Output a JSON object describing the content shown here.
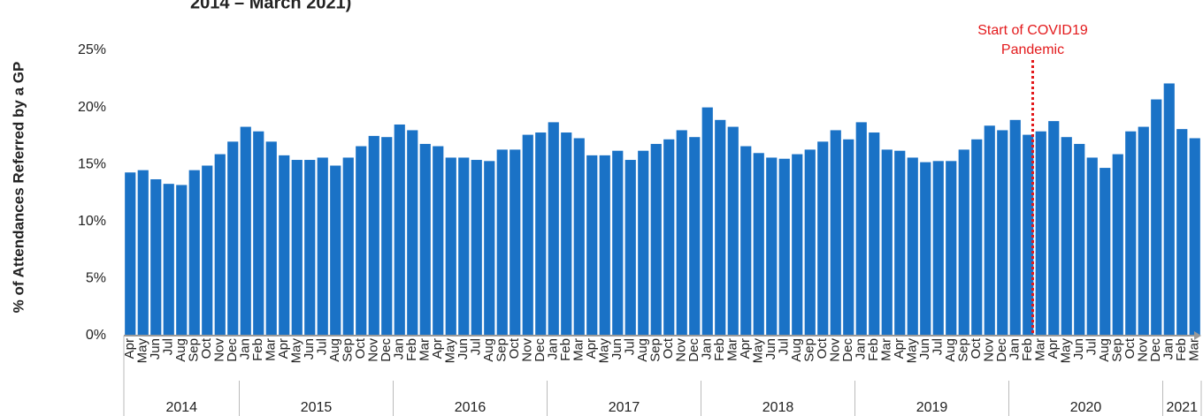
{
  "chart_data": {
    "type": "bar",
    "title": "2014 – March 2021)",
    "y_label": "% of Attendances Referred by a GP",
    "annotation": [
      "Start of COVID19",
      "Pandemic"
    ],
    "color": "#1a72c6",
    "annotation_color": "#e31a1c",
    "categories": [
      "Apr",
      "May",
      "Jun",
      "Jul",
      "Aug",
      "Sep",
      "Oct",
      "Nov",
      "Dec",
      "Jan",
      "Feb",
      "Mar",
      "Apr",
      "May",
      "Jun",
      "Jul",
      "Aug",
      "Sep",
      "Oct",
      "Nov",
      "Dec",
      "Jan",
      "Feb",
      "Mar",
      "Apr",
      "May",
      "Jun",
      "Jul",
      "Aug",
      "Sep",
      "Oct",
      "Nov",
      "Dec",
      "Jan",
      "Feb",
      "Mar",
      "Apr",
      "May",
      "Jun",
      "Jul",
      "Aug",
      "Sep",
      "Oct",
      "Nov",
      "Dec",
      "Jan",
      "Feb",
      "Mar",
      "Apr",
      "May",
      "Jun",
      "Jul",
      "Aug",
      "Sep",
      "Oct",
      "Nov",
      "Dec",
      "Jan",
      "Feb",
      "Mar",
      "Apr",
      "May",
      "Jun",
      "Jul",
      "Aug",
      "Sep",
      "Oct",
      "Nov",
      "Dec",
      "Jan",
      "Feb",
      "Mar",
      "Apr",
      "May",
      "Jun",
      "Jul",
      "Aug",
      "Sep",
      "Oct",
      "Nov",
      "Dec",
      "Jan",
      "Feb",
      "Mar"
    ],
    "years": [
      "2014",
      "2015",
      "2016",
      "2017",
      "2018",
      "2019",
      "2020",
      "2021"
    ],
    "values": [
      14.3,
      14.5,
      13.7,
      13.3,
      13.2,
      14.5,
      14.9,
      15.9,
      17.0,
      18.3,
      17.9,
      17.0,
      15.8,
      15.4,
      15.4,
      15.6,
      14.9,
      15.6,
      16.6,
      17.5,
      17.4,
      18.5,
      18.0,
      16.8,
      16.6,
      15.6,
      15.6,
      15.4,
      15.3,
      16.3,
      16.3,
      17.6,
      17.8,
      18.7,
      17.8,
      17.3,
      15.8,
      15.8,
      16.2,
      15.4,
      16.2,
      16.8,
      17.2,
      18.0,
      17.4,
      20.0,
      18.9,
      18.3,
      16.6,
      16.0,
      15.6,
      15.5,
      15.9,
      16.3,
      17.0,
      18.0,
      17.2,
      18.7,
      17.8,
      16.3,
      16.2,
      15.6,
      15.2,
      15.3,
      15.3,
      16.3,
      17.2,
      18.4,
      18.0,
      18.9,
      17.6,
      17.9,
      18.8,
      17.4,
      16.8,
      15.6,
      14.7,
      15.9,
      17.9,
      18.3,
      20.7,
      22.1,
      18.1,
      17.3
    ],
    "ylim": [
      0,
      25
    ],
    "yticks": [
      {
        "value": 0,
        "label": "0%"
      },
      {
        "value": 5,
        "label": "5%"
      },
      {
        "value": 10,
        "label": "10%"
      },
      {
        "value": 15,
        "label": "15%"
      },
      {
        "value": 20,
        "label": "20%"
      },
      {
        "value": 25,
        "label": "25%"
      }
    ]
  }
}
